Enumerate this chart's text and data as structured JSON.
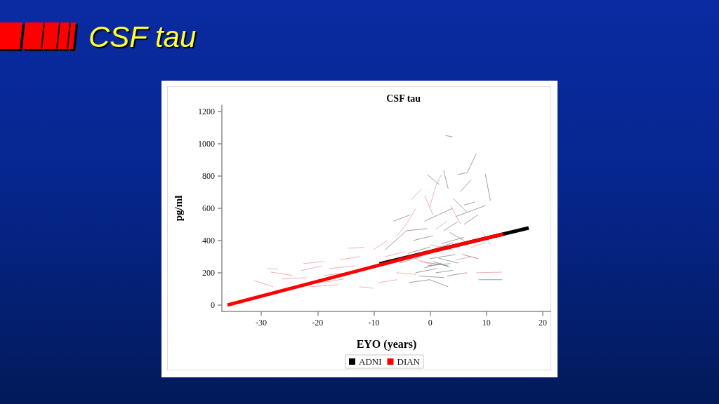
{
  "chart_data": {
    "type": "line",
    "title": "CSF tau",
    "subtitle": "CSF tau",
    "xlabel": "EYO (years)",
    "ylabel": "pg/ml",
    "xlim": [
      -37,
      21.5
    ],
    "xticks": [
      -30,
      -20,
      -10,
      0,
      10,
      20
    ],
    "ylim": [
      -40,
      1240
    ],
    "yticks": [
      0,
      200,
      400,
      600,
      800,
      1000,
      1200
    ],
    "grid": false,
    "legend": "bottom",
    "marker": "none",
    "line_style": "solid",
    "series": [
      {
        "color": "#8f8f8f",
        "x": [
          4.9,
          6.6,
          8.2,
          null,
          9.8,
          10.7,
          null,
          2.7,
          4.0,
          null,
          -0.5,
          1.6,
          null,
          2.4,
          3.2,
          null,
          4.1,
          6.6,
          null,
          5.4,
          7.3,
          null,
          4.5,
          9.8,
          null,
          -8.0,
          -4.2,
          -0.5,
          null,
          -2.6,
          1.1,
          null,
          -1.7,
          3.2,
          null,
          -0.5,
          3.6,
          null,
          -3.8,
          -0.1,
          3.2,
          null,
          5.7,
          8.6,
          null,
          8.6,
          12.8,
          null,
          -0.1,
          4.5,
          null,
          0.4,
          4.1,
          null,
          2.4,
          4.9,
          null,
          -1.0,
          2.0,
          null,
          0.5,
          3.5,
          null,
          1.0,
          4.0,
          null,
          -3.0,
          0.5,
          null,
          6.0,
          8.5,
          null,
          -4.0,
          0.0,
          null,
          -2.0,
          2.5,
          null,
          1.5,
          5.0,
          null,
          2.0,
          6.0,
          null,
          -5.5,
          -1.5,
          null,
          3.0,
          6.5,
          null,
          -1.0,
          1.5,
          4.0,
          null,
          6.0,
          8.0,
          null,
          -6.5,
          -3.5,
          null,
          3.5,
          6.0
        ],
        "values": [
          809,
          822,
          939,
          null,
          813,
          648,
          null,
          1052,
          1043,
          null,
          809,
          748,
          null,
          835,
          722,
          null,
          661,
          574,
          null,
          704,
          778,
          null,
          548,
          617,
          null,
          343,
          461,
          474,
          null,
          200,
          226,
          null,
          270,
          243,
          null,
          243,
          257,
          null,
          139,
          157,
          113,
          null,
          313,
          287,
          null,
          157,
          157,
          null,
          287,
          313,
          null,
          343,
          387,
          null,
          461,
          517,
          null,
          230,
          260,
          null,
          270,
          235,
          null,
          200,
          215,
          null,
          400,
          430,
          null,
          500,
          560,
          null,
          320,
          360,
          null,
          180,
          170,
          null,
          290,
          260,
          null,
          380,
          420,
          null,
          260,
          300,
          null,
          180,
          200,
          null,
          520,
          560,
          600,
          null,
          620,
          640,
          null,
          520,
          560,
          null,
          450,
          400
        ]
      },
      {
        "color": "#f2a0a8",
        "x": [
          -31.3,
          -27.9,
          null,
          -28.9,
          -27.0,
          null,
          -28.3,
          -24.5,
          null,
          -26.3,
          -22.0,
          null,
          -22.5,
          -18.8,
          null,
          -22.9,
          -19.2,
          null,
          -21.3,
          -16.3,
          null,
          -18.8,
          -14.6,
          null,
          -17.9,
          -13.3,
          null,
          -14.6,
          -11.7,
          null,
          -19.2,
          -15.4,
          null,
          -10.1,
          -7.6,
          null,
          -5.9,
          -4.2,
          -2.6,
          null,
          -0.1,
          1.1,
          2.0,
          null,
          3.6,
          5.4,
          null,
          8.2,
          12.8,
          null,
          7.3,
          9.8,
          null,
          -9.2,
          -5.9,
          null,
          -12.6,
          -10.1,
          null,
          -2.6,
          0.7,
          null,
          -0.1,
          4.1,
          null,
          9.1,
          10.7,
          null,
          -1.0,
          0.5,
          null,
          -8.0,
          -4.5,
          null,
          -6.0,
          -2.5,
          null,
          1.0,
          3.0,
          null,
          -3.5,
          -1.5,
          null,
          4.5,
          7.5,
          null,
          -16.0,
          -12.5
        ],
        "values": [
          152,
          113,
          null,
          226,
          222,
          null,
          204,
          183,
          null,
          161,
          170,
          null,
          257,
          270,
          null,
          213,
          243,
          null,
          113,
          126,
          null,
          183,
          200,
          null,
          226,
          243,
          null,
          352,
          357,
          null,
          139,
          161,
          null,
          343,
          400,
          null,
          430,
          504,
          596,
          null,
          604,
          748,
          809,
          null,
          617,
          504,
          null,
          200,
          204,
          null,
          357,
          387,
          null,
          139,
          157,
          null,
          113,
          104,
          null,
          287,
          243,
          null,
          374,
          343,
          null,
          461,
          374,
          null,
          680,
          560,
          null,
          300,
          330,
          null,
          200,
          190,
          null,
          470,
          520,
          null,
          650,
          720,
          null,
          280,
          300,
          null,
          280,
          300
        ]
      },
      {
        "name": "ADNI",
        "color": "#000000",
        "x": [
          -9,
          17.5
        ],
        "values": [
          255,
          478
        ]
      },
      {
        "name": "DIAN",
        "color": "#ff0000",
        "x": [
          -36,
          0,
          13
        ],
        "values": [
          0,
          330,
          440
        ]
      }
    ]
  }
}
